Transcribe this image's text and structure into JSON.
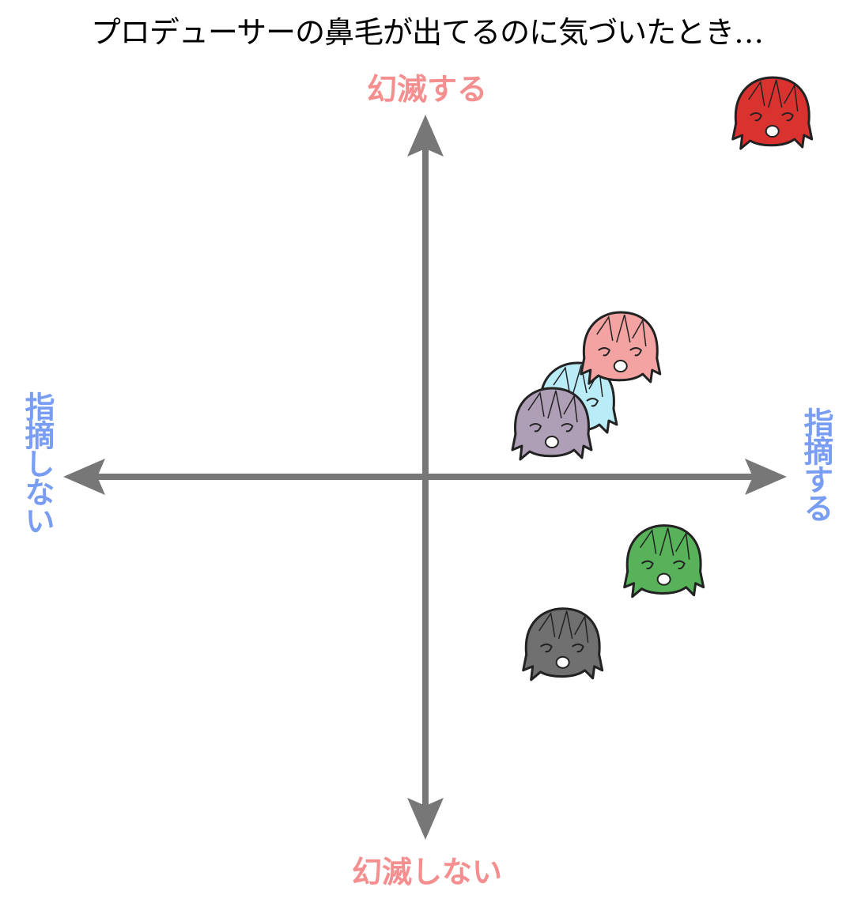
{
  "title": "プロデューサーの鼻毛が出てるのに気づいたとき…",
  "labels": {
    "top": "幻滅する",
    "bottom": "幻滅しない",
    "left": "指摘しない",
    "right": "指摘する"
  },
  "colors": {
    "axis": "#777777",
    "top_bottom_label": "#f58f8f",
    "left_right_label": "#789df2"
  },
  "chart_data": {
    "type": "scatter",
    "title": "プロデューサーの鼻毛が出てるのに気づいたとき…",
    "xlabel_positive": "指摘する",
    "xlabel_negative": "指摘しない",
    "ylabel_positive": "幻滅する",
    "ylabel_negative": "幻滅しない",
    "xlim": [
      -1,
      1
    ],
    "ylim": [
      -1,
      1
    ],
    "grid": false,
    "marker": "character-head-icon",
    "points": [
      {
        "color": "#b9ecf7",
        "x": 0.42,
        "y": 0.21
      },
      {
        "color": "#f4a3a3",
        "x": 0.54,
        "y": 0.35
      },
      {
        "color": "#ae9fb6",
        "x": 0.35,
        "y": 0.14
      },
      {
        "color": "#d9322f",
        "x": 0.96,
        "y": 1.0
      },
      {
        "color": "#58b25a",
        "x": 0.66,
        "y": -0.24
      },
      {
        "color": "#707070",
        "x": 0.38,
        "y": -0.47
      }
    ]
  }
}
